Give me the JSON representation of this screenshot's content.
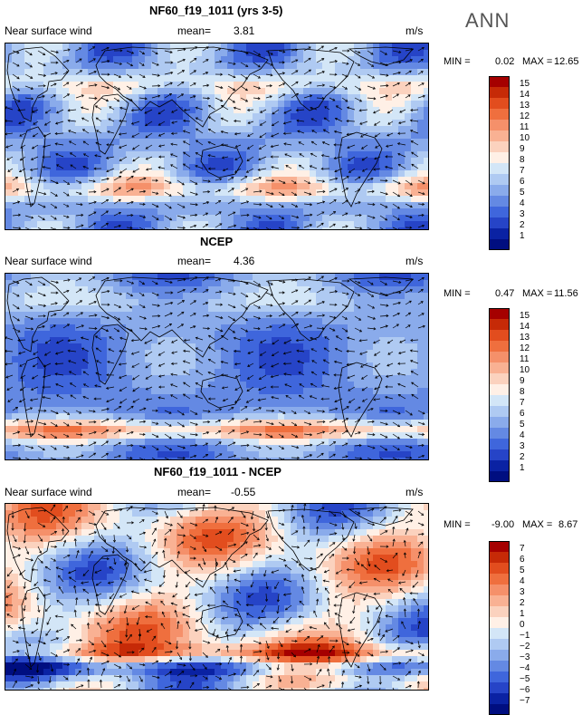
{
  "season": "ANN",
  "panels": [
    {
      "title": "NF60_f19_1011 (yrs 3-5)",
      "variable": "Near surface wind",
      "mean_label": "mean=",
      "mean_value": "3.81",
      "units": "m/s",
      "min_label": "MIN =",
      "min_value": "0.02",
      "max_label": "MAX =",
      "max_value": "12.65",
      "colorbar_labels": [
        "15",
        "14",
        "13",
        "12",
        "11",
        "10",
        "9",
        "8",
        "7",
        "6",
        "5",
        "4",
        "3",
        "2",
        "1"
      ],
      "colorbar_colors": [
        "#a50000",
        "#c62a07",
        "#e24d1e",
        "#ef6f3e",
        "#f5906a",
        "#f9b193",
        "#fbd2be",
        "#fff0e6",
        "#d3e6f7",
        "#afcaf2",
        "#8aabeb",
        "#6489e3",
        "#3f66dc",
        "#2644c7",
        "#0a22a3",
        "#000e80"
      ]
    },
    {
      "title": "NCEP",
      "variable": "Near surface wind",
      "mean_label": "mean=",
      "mean_value": "4.36",
      "units": "m/s",
      "min_label": "MIN =",
      "min_value": "0.47",
      "max_label": "MAX =",
      "max_value": "11.56",
      "colorbar_labels": [
        "15",
        "14",
        "13",
        "12",
        "11",
        "10",
        "9",
        "8",
        "7",
        "6",
        "5",
        "4",
        "3",
        "2",
        "1"
      ],
      "colorbar_colors": [
        "#a50000",
        "#c62a07",
        "#e24d1e",
        "#ef6f3e",
        "#f5906a",
        "#f9b193",
        "#fbd2be",
        "#fff0e6",
        "#d3e6f7",
        "#afcaf2",
        "#8aabeb",
        "#6489e3",
        "#3f66dc",
        "#2644c7",
        "#0a22a3",
        "#000e80"
      ]
    },
    {
      "title": "NF60_f19_1011 - NCEP",
      "variable": "Near surface wind",
      "mean_label": "mean=",
      "mean_value": "-0.55",
      "units": "m/s",
      "min_label": "MIN =",
      "min_value": "-9.00",
      "max_label": "MAX =",
      "max_value": "8.67",
      "colorbar_labels": [
        "7",
        "6",
        "5",
        "4",
        "3",
        "2",
        "1",
        "0",
        "−1",
        "−2",
        "−3",
        "−4",
        "−5",
        "−6",
        "−7"
      ],
      "colorbar_colors": [
        "#a50000",
        "#c62a07",
        "#e24d1e",
        "#ef6f3e",
        "#f5906a",
        "#f9b193",
        "#fbd2be",
        "#fff0e6",
        "#d3e6f7",
        "#afcaf2",
        "#8aabeb",
        "#6489e3",
        "#3f66dc",
        "#2644c7",
        "#0a22a3",
        "#000e80"
      ]
    }
  ]
}
